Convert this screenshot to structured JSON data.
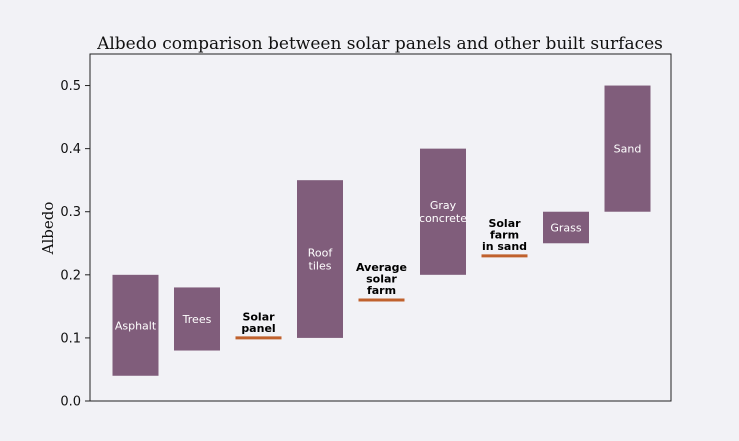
{
  "chart_data": {
    "type": "bar",
    "title": "Albedo comparison between solar panels and other built surfaces",
    "xlabel": "",
    "ylabel": "Albedo",
    "ylim": [
      0,
      0.55
    ],
    "yticks": [
      "0.0",
      "0.1",
      "0.2",
      "0.3",
      "0.4",
      "0.5"
    ],
    "grid": false,
    "colors": {
      "range_bar": "#805d7b",
      "solar_line": "#c0612d"
    },
    "items": [
      {
        "label": "Asphalt",
        "kind": "range",
        "low": 0.04,
        "high": 0.2
      },
      {
        "label": "Trees",
        "kind": "range",
        "low": 0.08,
        "high": 0.18
      },
      {
        "label": "Solar panel",
        "kind": "value",
        "value": 0.1
      },
      {
        "label": "Roof tiles",
        "kind": "range",
        "low": 0.1,
        "high": 0.35
      },
      {
        "label": "Average solar farm",
        "kind": "value",
        "value": 0.16
      },
      {
        "label": "Gray concrete",
        "kind": "range",
        "low": 0.2,
        "high": 0.4
      },
      {
        "label": "Solar farm in sand",
        "kind": "value",
        "value": 0.23
      },
      {
        "label": "Grass",
        "kind": "range",
        "low": 0.25,
        "high": 0.3
      },
      {
        "label": "Sand",
        "kind": "range",
        "low": 0.3,
        "high": 0.5
      }
    ]
  }
}
